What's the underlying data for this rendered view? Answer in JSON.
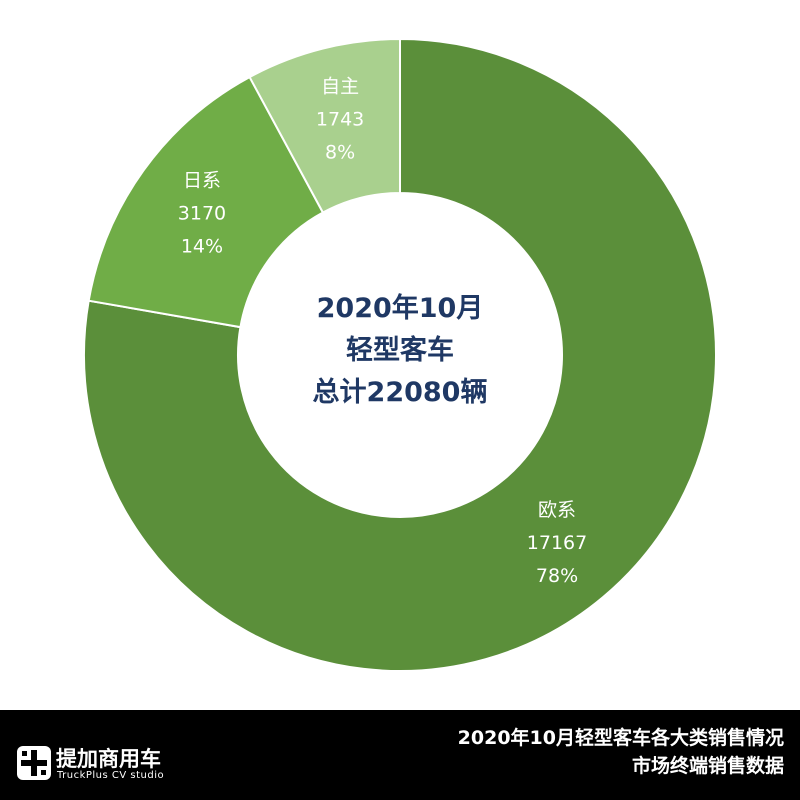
{
  "chart_data": {
    "type": "pie",
    "donut": true,
    "center_lines": [
      "2020年10月",
      "轻型客车",
      "总计22080辆"
    ],
    "slices": [
      {
        "name": "欧系",
        "value": 17167,
        "percent": "78%",
        "color": "#5b8f3a"
      },
      {
        "name": "日系",
        "value": 3170,
        "percent": "14%",
        "color": "#70ad47"
      },
      {
        "name": "自主",
        "value": 1743,
        "percent": "8%",
        "color": "#a9d08e"
      }
    ],
    "legend": "none"
  },
  "footer": {
    "title_line1": "2020年10月轻型客车各大类销售情况",
    "title_line2": "市场终端销售数据",
    "logo_name": "提加商用车",
    "logo_sub": "TruckPlus CV studio"
  }
}
